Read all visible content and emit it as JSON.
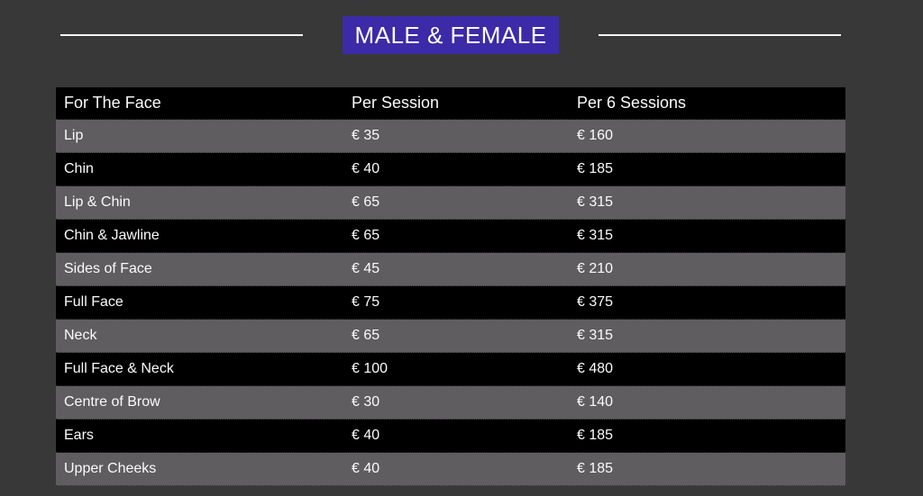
{
  "page": {
    "background_color": "#383838",
    "title": "MALE & FEMALE",
    "title_background_color": "#3b2ba8",
    "title_text_color": "#ffffff",
    "rule_color": "#f5f5f5"
  },
  "table": {
    "header_background_color": "#000000",
    "row_colors": {
      "gray": "#5f5d5f",
      "black": "#000000"
    },
    "columns": [
      "For The Face",
      "Per Session",
      "Per 6 Sessions"
    ],
    "rows": [
      {
        "area": "Lip",
        "per_session": "€ 35",
        "per_6_sessions": "€ 160"
      },
      {
        "area": "Chin",
        "per_session": "€ 40",
        "per_6_sessions": "€ 185"
      },
      {
        "area": "Lip & Chin",
        "per_session": "€ 65",
        "per_6_sessions": "€ 315"
      },
      {
        "area": "Chin & Jawline",
        "per_session": "€ 65",
        "per_6_sessions": "€ 315"
      },
      {
        "area": "Sides of Face",
        "per_session": "€ 45",
        "per_6_sessions": "€ 210"
      },
      {
        "area": "Full Face",
        "per_session": "€ 75",
        "per_6_sessions": "€ 375"
      },
      {
        "area": "Neck",
        "per_session": "€ 65",
        "per_6_sessions": "€ 315"
      },
      {
        "area": "Full Face & Neck",
        "per_session": "€ 100",
        "per_6_sessions": "€ 480"
      },
      {
        "area": "Centre of Brow",
        "per_session": "€ 30",
        "per_6_sessions": "€ 140"
      },
      {
        "area": "Ears",
        "per_session": "€ 40",
        "per_6_sessions": "€ 185"
      },
      {
        "area": "Upper Cheeks",
        "per_session": "€ 40",
        "per_6_sessions": "€ 185"
      }
    ]
  }
}
